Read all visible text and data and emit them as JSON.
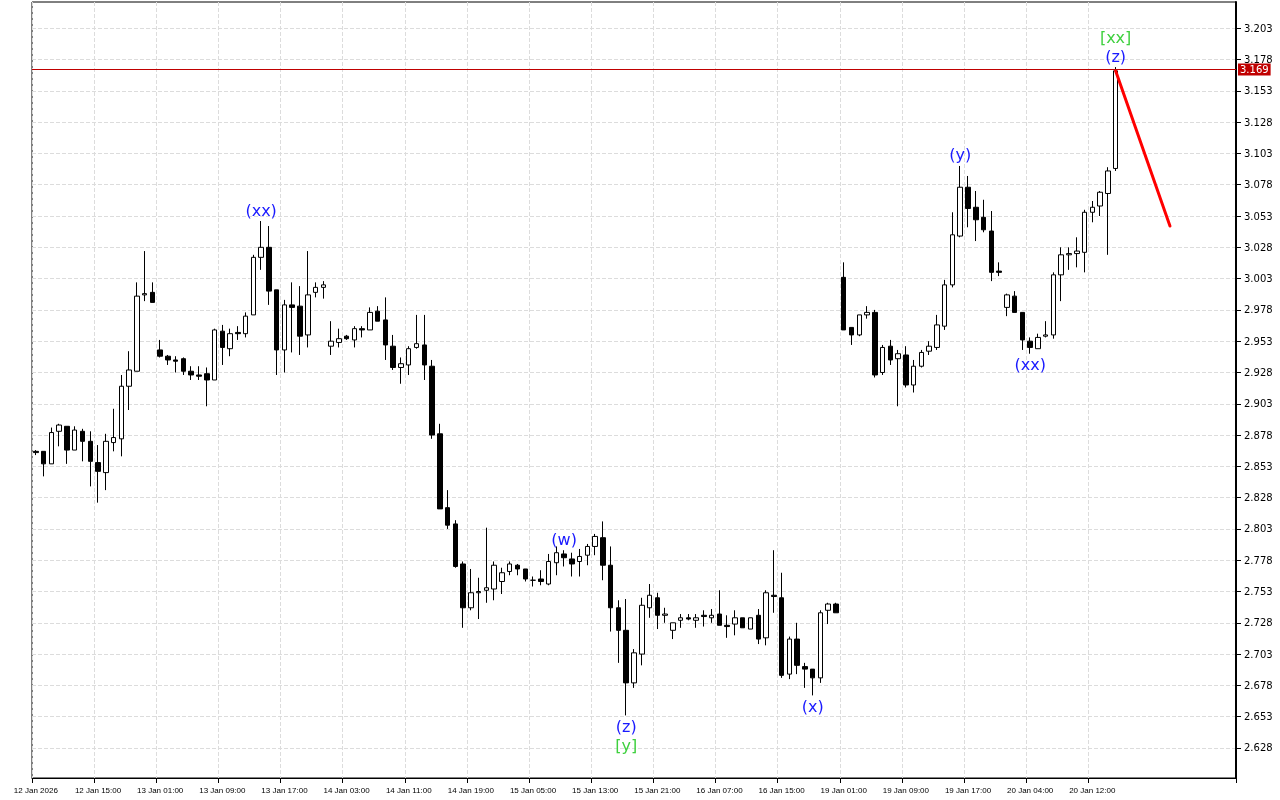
{
  "chart_data": {
    "type": "candlestick",
    "categories": [
      "12 Jan 2026",
      null,
      null,
      null,
      null,
      null,
      null,
      null,
      "12 Jan 15:00",
      null,
      null,
      null,
      null,
      null,
      null,
      null,
      "13 Jan 01:00",
      null,
      null,
      null,
      null,
      null,
      null,
      null,
      "13 Jan 09:00",
      null,
      null,
      null,
      null,
      null,
      null,
      null,
      "13 Jan 17:00",
      null,
      null,
      null,
      null,
      null,
      null,
      null,
      "14 Jan 03:00",
      null,
      null,
      null,
      null,
      null,
      null,
      null,
      "14 Jan 11:00",
      null,
      null,
      null,
      null,
      null,
      null,
      null,
      "14 Jan 19:00",
      null,
      null,
      null,
      null,
      null,
      null,
      null,
      "15 Jan 05:00",
      null,
      null,
      null,
      null,
      null,
      null,
      null,
      "15 Jan 13:00",
      null,
      null,
      null,
      null,
      null,
      null,
      null,
      "15 Jan 21:00",
      null,
      null,
      null,
      null,
      null,
      null,
      null,
      "16 Jan 07:00",
      null,
      null,
      null,
      null,
      null,
      null,
      null,
      "16 Jan 15:00",
      null,
      null,
      null,
      null,
      null,
      null,
      null,
      "19 Jan 01:00",
      null,
      null,
      null,
      null,
      null,
      null,
      null,
      "19 Jan 09:00",
      null,
      null,
      null,
      null,
      null,
      null,
      null,
      "19 Jan 17:00",
      null,
      null,
      null,
      null,
      null,
      null,
      null,
      "20 Jan 04:00",
      null,
      null,
      null,
      null,
      null,
      null,
      null,
      "20 Jan 12:00",
      null,
      null,
      null,
      null,
      null,
      null,
      null,
      null,
      null,
      null,
      null,
      null,
      null,
      null,
      null,
      null,
      null,
      null
    ],
    "ohlc": [
      [
        2.865,
        2.866,
        2.862,
        2.864
      ],
      [
        2.865,
        2.865,
        2.845,
        2.855
      ],
      [
        2.855,
        2.884,
        2.855,
        2.88
      ],
      [
        2.881,
        2.887,
        2.869,
        2.886
      ],
      [
        2.885,
        2.885,
        2.855,
        2.866
      ],
      [
        2.866,
        2.885,
        2.866,
        2.882
      ],
      [
        2.881,
        2.883,
        2.857,
        2.873
      ],
      [
        2.873,
        2.881,
        2.837,
        2.857
      ],
      [
        2.856,
        2.87,
        2.824,
        2.849
      ],
      [
        2.848,
        2.879,
        2.834,
        2.873
      ],
      [
        2.872,
        2.899,
        2.865,
        2.876
      ],
      [
        2.875,
        2.926,
        2.861,
        2.917
      ],
      [
        2.917,
        2.945,
        2.898,
        2.93
      ],
      [
        2.929,
        3.0,
        2.929,
        2.989
      ],
      [
        2.99,
        3.025,
        2.985,
        2.991
      ],
      [
        2.992,
        3.0,
        2.984,
        2.984
      ],
      [
        2.946,
        2.954,
        2.94,
        2.941
      ],
      [
        2.941,
        2.942,
        2.934,
        2.938
      ],
      [
        2.938,
        2.941,
        2.928,
        2.937
      ],
      [
        2.939,
        2.94,
        2.926,
        2.929
      ],
      [
        2.929,
        2.933,
        2.922,
        2.926
      ],
      [
        2.926,
        2.933,
        2.922,
        2.925
      ],
      [
        2.927,
        2.932,
        2.901,
        2.922
      ],
      [
        2.922,
        2.963,
        2.922,
        2.962
      ],
      [
        2.961,
        2.966,
        2.934,
        2.948
      ],
      [
        2.947,
        2.963,
        2.941,
        2.959
      ],
      [
        2.96,
        2.965,
        2.954,
        2.959
      ],
      [
        2.959,
        2.976,
        2.956,
        2.973
      ],
      [
        2.974,
        3.022,
        2.974,
        3.02
      ],
      [
        3.02,
        3.049,
        3.01,
        3.028
      ],
      [
        3.028,
        3.045,
        2.982,
        2.993
      ],
      [
        2.994,
        2.994,
        2.926,
        2.946
      ],
      [
        2.946,
        2.986,
        2.928,
        2.982
      ],
      [
        2.982,
        3.0,
        2.944,
        2.98
      ],
      [
        2.981,
        2.997,
        2.942,
        2.957
      ],
      [
        2.958,
        3.025,
        2.948,
        2.99
      ],
      [
        2.992,
        3.0,
        2.988,
        2.996
      ],
      [
        2.996,
        3.001,
        2.987,
        2.998
      ],
      [
        2.949,
        2.969,
        2.942,
        2.953
      ],
      [
        2.952,
        2.963,
        2.948,
        2.955
      ],
      [
        2.957,
        2.958,
        2.954,
        2.955
      ],
      [
        2.954,
        2.965,
        2.948,
        2.963
      ],
      [
        2.963,
        2.965,
        2.956,
        2.962
      ],
      [
        2.962,
        2.98,
        2.962,
        2.976
      ],
      [
        2.977,
        2.981,
        2.969,
        2.969
      ],
      [
        2.97,
        2.988,
        2.938,
        2.95
      ],
      [
        2.949,
        2.958,
        2.93,
        2.932
      ],
      [
        2.932,
        2.94,
        2.919,
        2.935
      ],
      [
        2.934,
        2.949,
        2.926,
        2.947
      ],
      [
        2.948,
        2.974,
        2.947,
        2.951
      ],
      [
        2.95,
        2.974,
        2.922,
        2.934
      ],
      [
        2.933,
        2.938,
        2.875,
        2.878
      ],
      [
        2.879,
        2.887,
        2.819,
        2.819
      ],
      [
        2.82,
        2.834,
        2.803,
        2.806
      ],
      [
        2.807,
        2.81,
        2.772,
        2.773
      ],
      [
        2.775,
        2.777,
        2.724,
        2.74
      ],
      [
        2.74,
        2.771,
        2.738,
        2.752
      ],
      [
        2.752,
        2.764,
        2.731,
        2.753
      ],
      [
        2.754,
        2.804,
        2.744,
        2.756
      ],
      [
        2.755,
        2.777,
        2.746,
        2.774
      ],
      [
        2.761,
        2.772,
        2.751,
        2.768
      ],
      [
        2.769,
        2.777,
        2.766,
        2.775
      ],
      [
        2.774,
        2.775,
        2.766,
        2.771
      ],
      [
        2.771,
        2.771,
        2.761,
        2.763
      ],
      [
        2.762,
        2.765,
        2.757,
        2.762
      ],
      [
        2.763,
        2.77,
        2.758,
        2.761
      ],
      [
        2.759,
        2.783,
        2.758,
        2.777
      ],
      [
        2.776,
        2.789,
        2.766,
        2.784
      ],
      [
        2.783,
        2.786,
        2.773,
        2.78
      ],
      [
        2.779,
        2.784,
        2.765,
        2.775
      ],
      [
        2.777,
        2.787,
        2.765,
        2.781
      ],
      [
        2.782,
        2.791,
        2.774,
        2.789
      ],
      [
        2.789,
        2.799,
        2.782,
        2.797
      ],
      [
        2.796,
        2.809,
        2.762,
        2.774
      ],
      [
        2.774,
        2.789,
        2.721,
        2.74
      ],
      [
        2.74,
        2.746,
        2.696,
        2.722
      ],
      [
        2.722,
        2.747,
        2.654,
        2.68
      ],
      [
        2.68,
        2.707,
        2.676,
        2.704
      ],
      [
        2.703,
        2.748,
        2.694,
        2.742
      ],
      [
        2.74,
        2.759,
        2.732,
        2.75
      ],
      [
        2.748,
        2.752,
        2.723,
        2.734
      ],
      [
        2.734,
        2.74,
        2.728,
        2.735
      ],
      [
        2.722,
        2.728,
        2.715,
        2.728
      ],
      [
        2.73,
        2.735,
        2.724,
        2.732
      ],
      [
        2.732,
        2.735,
        2.73,
        2.731
      ],
      [
        2.73,
        2.735,
        2.724,
        2.732
      ],
      [
        2.734,
        2.738,
        2.725,
        2.733
      ],
      [
        2.732,
        2.739,
        2.728,
        2.734
      ],
      [
        2.735,
        2.754,
        2.726,
        2.726
      ],
      [
        2.726,
        2.734,
        2.716,
        2.725
      ],
      [
        2.727,
        2.738,
        2.718,
        2.732
      ],
      [
        2.732,
        2.732,
        2.724,
        2.724
      ],
      [
        2.723,
        2.732,
        2.723,
        2.732
      ],
      [
        2.734,
        2.739,
        2.711,
        2.715
      ],
      [
        2.716,
        2.754,
        2.71,
        2.752
      ],
      [
        2.75,
        2.786,
        2.736,
        2.749
      ],
      [
        2.748,
        2.768,
        2.684,
        2.686
      ],
      [
        2.687,
        2.717,
        2.683,
        2.715
      ],
      [
        2.715,
        2.728,
        2.687,
        2.694
      ],
      [
        2.693,
        2.696,
        2.676,
        2.691
      ],
      [
        2.691,
        2.691,
        2.67,
        2.684
      ],
      [
        2.684,
        2.738,
        2.68,
        2.736
      ],
      [
        2.738,
        2.744,
        2.727,
        2.743
      ],
      [
        2.743,
        2.744,
        2.736,
        2.736
      ],
      [
        3.004,
        3.016,
        2.962,
        2.962
      ],
      [
        2.964,
        2.964,
        2.95,
        2.958
      ],
      [
        2.958,
        2.974,
        2.957,
        2.974
      ],
      [
        2.974,
        2.981,
        2.971,
        2.976
      ],
      [
        2.976,
        2.978,
        2.924,
        2.926
      ],
      [
        2.928,
        2.95,
        2.926,
        2.948
      ],
      [
        2.949,
        2.954,
        2.934,
        2.938
      ],
      [
        2.939,
        2.946,
        2.901,
        2.943
      ],
      [
        2.942,
        2.949,
        2.916,
        2.918
      ],
      [
        2.918,
        2.938,
        2.912,
        2.933
      ],
      [
        2.933,
        2.946,
        2.932,
        2.944
      ],
      [
        2.945,
        2.953,
        2.942,
        2.949
      ],
      [
        2.948,
        2.974,
        2.946,
        2.966
      ],
      [
        2.965,
        3.002,
        2.962,
        2.998
      ],
      [
        2.998,
        3.056,
        2.996,
        3.038
      ],
      [
        3.037,
        3.093,
        3.036,
        3.076
      ],
      [
        3.076,
        3.085,
        3.044,
        3.059
      ],
      [
        3.06,
        3.073,
        3.033,
        3.05
      ],
      [
        3.052,
        3.066,
        3.04,
        3.042
      ],
      [
        3.041,
        3.057,
        3.001,
        3.008
      ],
      [
        3.009,
        3.016,
        3.005,
        3.008
      ],
      [
        2.98,
        2.991,
        2.973,
        2.99
      ],
      [
        2.989,
        2.993,
        2.976,
        2.976
      ],
      [
        2.976,
        2.976,
        2.946,
        2.954
      ],
      [
        2.953,
        2.956,
        2.943,
        2.948
      ],
      [
        2.947,
        2.959,
        2.947,
        2.956
      ],
      [
        2.957,
        2.969,
        2.956,
        2.958
      ],
      [
        2.958,
        3.008,
        2.955,
        3.006
      ],
      [
        3.006,
        3.028,
        2.985,
        3.022
      ],
      [
        3.022,
        3.028,
        3.01,
        3.023
      ],
      [
        3.023,
        3.036,
        3.012,
        3.025
      ],
      [
        3.024,
        3.058,
        3.008,
        3.056
      ],
      [
        3.056,
        3.065,
        3.048,
        3.06
      ],
      [
        3.061,
        3.073,
        3.053,
        3.072
      ],
      [
        3.071,
        3.092,
        3.022,
        3.089
      ],
      [
        3.091,
        3.172,
        3.089,
        3.169
      ],
      null,
      null,
      null,
      null,
      null,
      null,
      null,
      null,
      null,
      null,
      null,
      null,
      null,
      null,
      null
    ],
    "series": [
      {
        "type": "line",
        "color": "#ff0000",
        "values": [
          null,
          null,
          null,
          null,
          null,
          null,
          null,
          null,
          null,
          null,
          null,
          null,
          null,
          null,
          null,
          null,
          null,
          null,
          null,
          null,
          null,
          null,
          null,
          null,
          null,
          null,
          null,
          null,
          null,
          null,
          null,
          null,
          null,
          null,
          null,
          null,
          null,
          null,
          null,
          null,
          null,
          null,
          null,
          null,
          null,
          null,
          null,
          null,
          null,
          null,
          null,
          null,
          null,
          null,
          null,
          null,
          null,
          null,
          null,
          null,
          null,
          null,
          null,
          null,
          null,
          null,
          null,
          null,
          null,
          null,
          null,
          null,
          null,
          null,
          null,
          null,
          null,
          null,
          null,
          null,
          null,
          null,
          null,
          null,
          null,
          null,
          null,
          null,
          null,
          null,
          null,
          null,
          null,
          null,
          null,
          null,
          null,
          null,
          null,
          null,
          null,
          null,
          null,
          null,
          null,
          null,
          null,
          null,
          null,
          null,
          null,
          null,
          null,
          null,
          null,
          null,
          null,
          null,
          null,
          null,
          null,
          null,
          null,
          null,
          null,
          null,
          null,
          null,
          null,
          null,
          null,
          null,
          null,
          null,
          null,
          null,
          null,
          null,
          null,
          3.169,
          null,
          null,
          null,
          null,
          null,
          null,
          3.045,
          null,
          null,
          null,
          null,
          null,
          null,
          null,
          null
        ]
      }
    ],
    "ylim": [
      2.604,
      3.224
    ],
    "yticks": [
      2.628,
      2.653,
      2.678,
      2.703,
      2.728,
      2.753,
      2.778,
      2.803,
      2.828,
      2.853,
      2.878,
      2.903,
      2.928,
      2.953,
      2.978,
      3.003,
      3.028,
      3.053,
      3.078,
      3.103,
      3.128,
      3.153,
      3.178,
      3.203
    ],
    "ref_lines": [
      {
        "axis": "y",
        "value": 3.169,
        "label": "3.169",
        "color": "#c00000"
      }
    ],
    "annotations": [
      {
        "text": "(xx)",
        "y": 3.049
      },
      {
        "text": "(z)",
        "y": 2.654
      },
      {
        "text": "[y]",
        "y": 2.654
      },
      {
        "text": "(w)",
        "y": 2.786
      },
      {
        "text": "(x)",
        "y": 2.67
      },
      {
        "text": "(y)",
        "y": 3.093
      },
      {
        "text": "(xx)",
        "y": 2.943
      },
      {
        "text": "(z)",
        "y": 3.172
      },
      {
        "text": "[xx]",
        "y": 3.172
      }
    ],
    "grid": true
  }
}
